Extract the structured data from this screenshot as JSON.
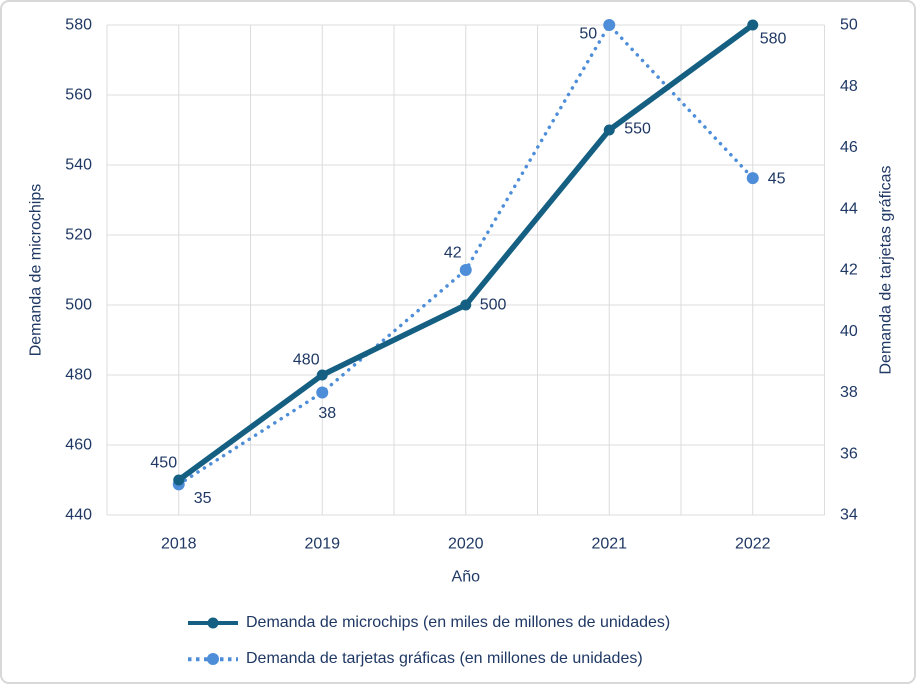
{
  "colors": {
    "microchips": "#156082",
    "tarjetas": "#4E8ED8",
    "text": "#1F3864",
    "gridline": "#DCDCDC",
    "figure_border": "#D8D8D8",
    "background": "#FFFFFF"
  },
  "chart_data": {
    "type": "line",
    "title": "",
    "xlabel": "Año",
    "x": [
      "2018",
      "2019",
      "2020",
      "2021",
      "2022"
    ],
    "series": [
      {
        "name": "Demanda de microchips (en miles de millones de unidades)",
        "axis": "left",
        "line_style": "solid",
        "marker": "circle",
        "color": "#156082",
        "values": [
          450,
          480,
          500,
          550,
          580
        ]
      },
      {
        "name": "Demanda de tarjetas gráficas (en millones de unidades)",
        "axis": "right",
        "line_style": "dotted",
        "marker": "circle",
        "color": "#4E8ED8",
        "values": [
          35,
          38,
          42,
          50,
          45
        ]
      }
    ],
    "left_axis": {
      "title": "Demanda de microchips",
      "min": 440,
      "max": 580,
      "ticks": [
        440,
        460,
        480,
        500,
        520,
        540,
        560,
        580
      ]
    },
    "right_axis": {
      "title": "Demanda de tarjetas gráficas",
      "min": 34,
      "max": 50,
      "ticks": [
        34,
        36,
        38,
        40,
        42,
        44,
        46,
        48,
        50
      ]
    },
    "grid": true,
    "legend_position": "bottom",
    "data_labels_visible": true
  }
}
